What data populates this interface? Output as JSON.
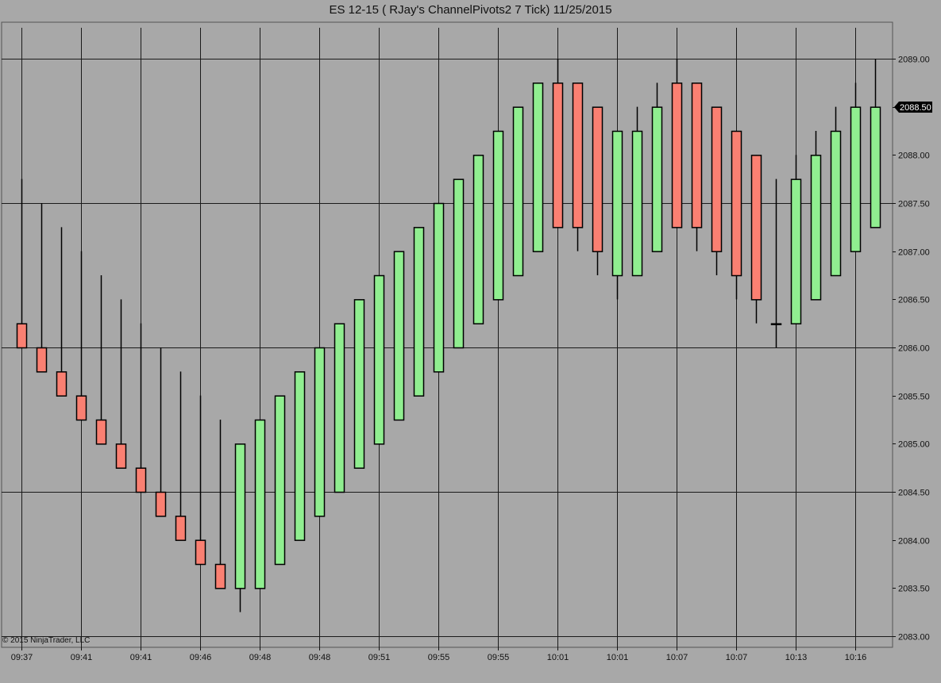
{
  "title": "ES 12-15 ( RJay's ChannelPivots2  7 Tick)  11/25/2015",
  "copyright": "© 2015 NinjaTrader, LLC",
  "current_price_label": "2088.50",
  "colors": {
    "background": "#a8a8a8",
    "up": "#90ee90",
    "down": "#fa8072",
    "grid": "#1a1a1a",
    "current_price_bg": "#000000",
    "current_price_text": "#ffffff"
  },
  "chart_data": {
    "type": "candlestick",
    "y_ticks": [
      "2083.00",
      "2083.50",
      "2084.00",
      "2084.50",
      "2085.00",
      "2085.50",
      "2086.00",
      "2086.50",
      "2087.00",
      "2087.50",
      "2088.00",
      "2088.50",
      "2089.00"
    ],
    "x_tick_labels": [
      "09:37",
      "09:41",
      "09:41",
      "09:46",
      "09:48",
      "09:48",
      "09:51",
      "09:55",
      "09:55",
      "10:01",
      "10:01",
      "10:07",
      "10:07",
      "10:13",
      "10:16"
    ],
    "ylim": [
      2082.9,
      2089.35
    ],
    "grid": true,
    "current_price": 2088.5,
    "bars": [
      {
        "open": 2086.25,
        "high": 2087.75,
        "low": 2086.0,
        "close": 2086.0,
        "color": "down"
      },
      {
        "open": 2086.0,
        "high": 2087.5,
        "low": 2085.75,
        "close": 2085.75,
        "color": "down"
      },
      {
        "open": 2085.75,
        "high": 2087.25,
        "low": 2085.5,
        "close": 2085.5,
        "color": "down"
      },
      {
        "open": 2085.5,
        "high": 2087.0,
        "low": 2085.25,
        "close": 2085.25,
        "color": "down"
      },
      {
        "open": 2085.25,
        "high": 2086.75,
        "low": 2085.0,
        "close": 2085.0,
        "color": "down"
      },
      {
        "open": 2085.0,
        "high": 2086.5,
        "low": 2084.75,
        "close": 2084.75,
        "color": "down"
      },
      {
        "open": 2084.75,
        "high": 2086.25,
        "low": 2084.5,
        "close": 2084.5,
        "color": "down"
      },
      {
        "open": 2084.5,
        "high": 2086.0,
        "low": 2084.25,
        "close": 2084.25,
        "color": "down"
      },
      {
        "open": 2084.25,
        "high": 2085.75,
        "low": 2084.0,
        "close": 2084.0,
        "color": "down"
      },
      {
        "open": 2084.0,
        "high": 2085.5,
        "low": 2083.75,
        "close": 2083.75,
        "color": "down"
      },
      {
        "open": 2083.75,
        "high": 2085.25,
        "low": 2083.5,
        "close": 2083.5,
        "color": "down"
      },
      {
        "open": 2083.5,
        "high": 2085.0,
        "low": 2083.25,
        "close": 2085.0,
        "color": "up"
      },
      {
        "open": 2083.5,
        "high": 2085.25,
        "low": 2083.5,
        "close": 2085.25,
        "color": "up"
      },
      {
        "open": 2083.75,
        "high": 2085.5,
        "low": 2083.75,
        "close": 2085.5,
        "color": "up"
      },
      {
        "open": 2084.0,
        "high": 2085.75,
        "low": 2084.0,
        "close": 2085.75,
        "color": "up"
      },
      {
        "open": 2084.25,
        "high": 2086.0,
        "low": 2084.25,
        "close": 2086.0,
        "color": "up"
      },
      {
        "open": 2084.5,
        "high": 2086.25,
        "low": 2084.5,
        "close": 2086.25,
        "color": "up"
      },
      {
        "open": 2084.75,
        "high": 2086.5,
        "low": 2084.75,
        "close": 2086.5,
        "color": "up"
      },
      {
        "open": 2085.0,
        "high": 2086.75,
        "low": 2085.0,
        "close": 2086.75,
        "color": "up"
      },
      {
        "open": 2085.25,
        "high": 2087.0,
        "low": 2085.25,
        "close": 2087.0,
        "color": "up"
      },
      {
        "open": 2085.5,
        "high": 2087.25,
        "low": 2085.5,
        "close": 2087.25,
        "color": "up"
      },
      {
        "open": 2085.75,
        "high": 2087.5,
        "low": 2085.75,
        "close": 2087.5,
        "color": "up"
      },
      {
        "open": 2086.0,
        "high": 2087.75,
        "low": 2086.0,
        "close": 2087.75,
        "color": "up"
      },
      {
        "open": 2086.25,
        "high": 2088.0,
        "low": 2086.25,
        "close": 2088.0,
        "color": "up"
      },
      {
        "open": 2086.5,
        "high": 2088.25,
        "low": 2086.5,
        "close": 2088.25,
        "color": "up"
      },
      {
        "open": 2086.75,
        "high": 2088.5,
        "low": 2086.75,
        "close": 2088.5,
        "color": "up"
      },
      {
        "open": 2087.0,
        "high": 2088.75,
        "low": 2087.0,
        "close": 2088.75,
        "color": "up"
      },
      {
        "open": 2088.75,
        "high": 2089.0,
        "low": 2087.25,
        "close": 2087.25,
        "color": "down"
      },
      {
        "open": 2088.75,
        "high": 2088.75,
        "low": 2087.0,
        "close": 2087.25,
        "color": "down"
      },
      {
        "open": 2088.5,
        "high": 2088.5,
        "low": 2086.75,
        "close": 2087.0,
        "color": "down"
      },
      {
        "open": 2086.75,
        "high": 2088.25,
        "low": 2086.5,
        "close": 2088.25,
        "color": "up"
      },
      {
        "open": 2086.75,
        "high": 2088.5,
        "low": 2086.75,
        "close": 2088.25,
        "color": "up"
      },
      {
        "open": 2087.0,
        "high": 2088.75,
        "low": 2087.0,
        "close": 2088.5,
        "color": "up"
      },
      {
        "open": 2088.75,
        "high": 2089.0,
        "low": 2087.25,
        "close": 2087.25,
        "color": "down"
      },
      {
        "open": 2088.75,
        "high": 2088.75,
        "low": 2087.0,
        "close": 2087.25,
        "color": "down"
      },
      {
        "open": 2088.5,
        "high": 2088.5,
        "low": 2086.75,
        "close": 2087.0,
        "color": "down"
      },
      {
        "open": 2088.25,
        "high": 2088.25,
        "low": 2086.5,
        "close": 2086.75,
        "color": "down"
      },
      {
        "open": 2088.0,
        "high": 2088.0,
        "low": 2086.25,
        "close": 2086.5,
        "color": "down"
      },
      {
        "open": 2086.25,
        "high": 2087.75,
        "low": 2086.0,
        "close": 2086.25,
        "color": "up"
      },
      {
        "open": 2086.25,
        "high": 2088.0,
        "low": 2086.25,
        "close": 2087.75,
        "color": "up"
      },
      {
        "open": 2086.5,
        "high": 2088.25,
        "low": 2086.5,
        "close": 2088.0,
        "color": "up"
      },
      {
        "open": 2086.75,
        "high": 2088.5,
        "low": 2086.75,
        "close": 2088.25,
        "color": "up"
      },
      {
        "open": 2087.0,
        "high": 2088.75,
        "low": 2087.0,
        "close": 2088.5,
        "color": "up"
      },
      {
        "open": 2087.25,
        "high": 2089.0,
        "low": 2087.25,
        "close": 2088.5,
        "color": "up"
      }
    ]
  }
}
